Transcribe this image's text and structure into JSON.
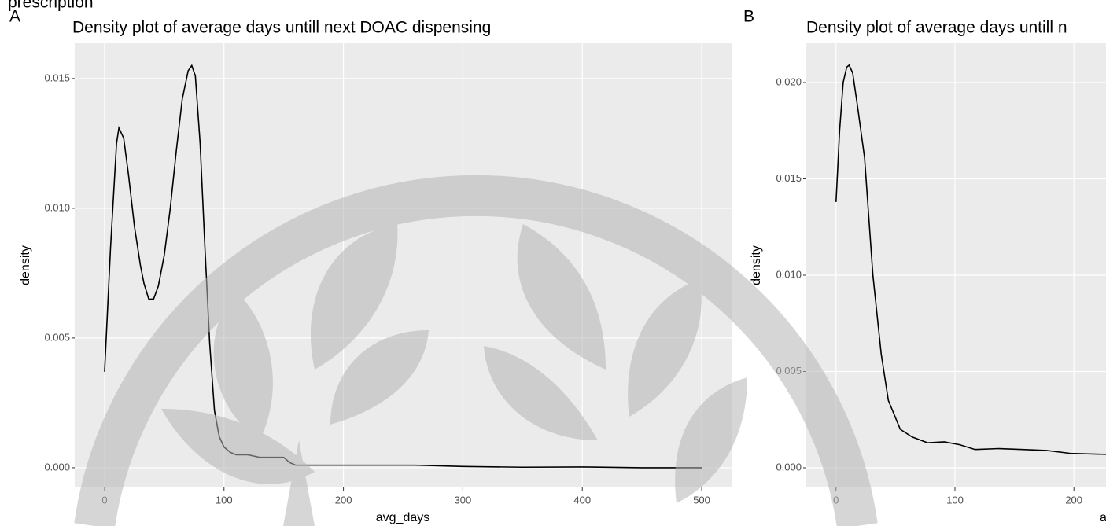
{
  "caption": "prescription",
  "chart_data": [
    {
      "type": "line",
      "panel": "A",
      "title": "Density plot of average days untill next DOAC dispensing",
      "x_label": "avg_days",
      "y_label": "density",
      "color": "#000000",
      "grid": true,
      "x": [
        0,
        5,
        10,
        12,
        16,
        20,
        25,
        30,
        33,
        37,
        41,
        45,
        50,
        55,
        60,
        65,
        70,
        73,
        76,
        80,
        84,
        88,
        92,
        96,
        100,
        105,
        110,
        120,
        130,
        140,
        150,
        155,
        160,
        170,
        200,
        230,
        260,
        300,
        350,
        400,
        450,
        500
      ],
      "values": [
        0.0037,
        0.0085,
        0.0125,
        0.0131,
        0.0127,
        0.0113,
        0.0093,
        0.0078,
        0.0071,
        0.0065,
        0.0065,
        0.007,
        0.0082,
        0.01,
        0.0122,
        0.0142,
        0.0153,
        0.0155,
        0.0151,
        0.0125,
        0.0085,
        0.0048,
        0.0022,
        0.0012,
        0.0008,
        0.0006,
        0.0005,
        0.0005,
        0.0004,
        0.0004,
        0.0004,
        0.0002,
        0.0001,
        0.0001,
        0.0001,
        0.0001,
        0.0001,
        5e-05,
        2e-05,
        3e-05,
        0,
        0
      ],
      "xlim": [
        -25,
        525
      ],
      "ylim": [
        -0.00076,
        0.01636
      ],
      "xticks": [
        0,
        100,
        200,
        300,
        400,
        500
      ],
      "yticks": [
        {
          "value": 0,
          "label": "0.000"
        },
        {
          "value": 0.005,
          "label": "0.005"
        },
        {
          "value": 0.01,
          "label": "0.010"
        },
        {
          "value": 0.015,
          "label": "0.015"
        }
      ]
    },
    {
      "type": "line",
      "panel": "B",
      "title": "Density plot of average days untill n",
      "x_label": "a",
      "y_label": "density",
      "color": "#000000",
      "grid": true,
      "x": [
        0,
        3,
        6,
        9,
        11,
        14,
        18,
        24,
        31,
        38,
        44,
        54,
        64,
        77,
        91,
        104,
        117,
        137,
        157,
        177,
        197,
        227
      ],
      "values": [
        0.0138,
        0.0175,
        0.02,
        0.0208,
        0.0209,
        0.0205,
        0.0188,
        0.0161,
        0.01,
        0.0059,
        0.0035,
        0.002,
        0.0016,
        0.0013,
        0.00135,
        0.0012,
        0.00095,
        0.001,
        0.00095,
        0.0009,
        0.00075,
        0.0007
      ],
      "xlim": [
        -25,
        227
      ],
      "ylim": [
        -0.00102,
        0.02204
      ],
      "xticks": [
        0,
        100,
        200
      ],
      "yticks": [
        {
          "value": 0,
          "label": "0.000"
        },
        {
          "value": 0.005,
          "label": "0.005"
        },
        {
          "value": 0.01,
          "label": "0.010"
        },
        {
          "value": 0.015,
          "label": "0.015"
        },
        {
          "value": 0.02,
          "label": "0.020"
        }
      ]
    }
  ]
}
